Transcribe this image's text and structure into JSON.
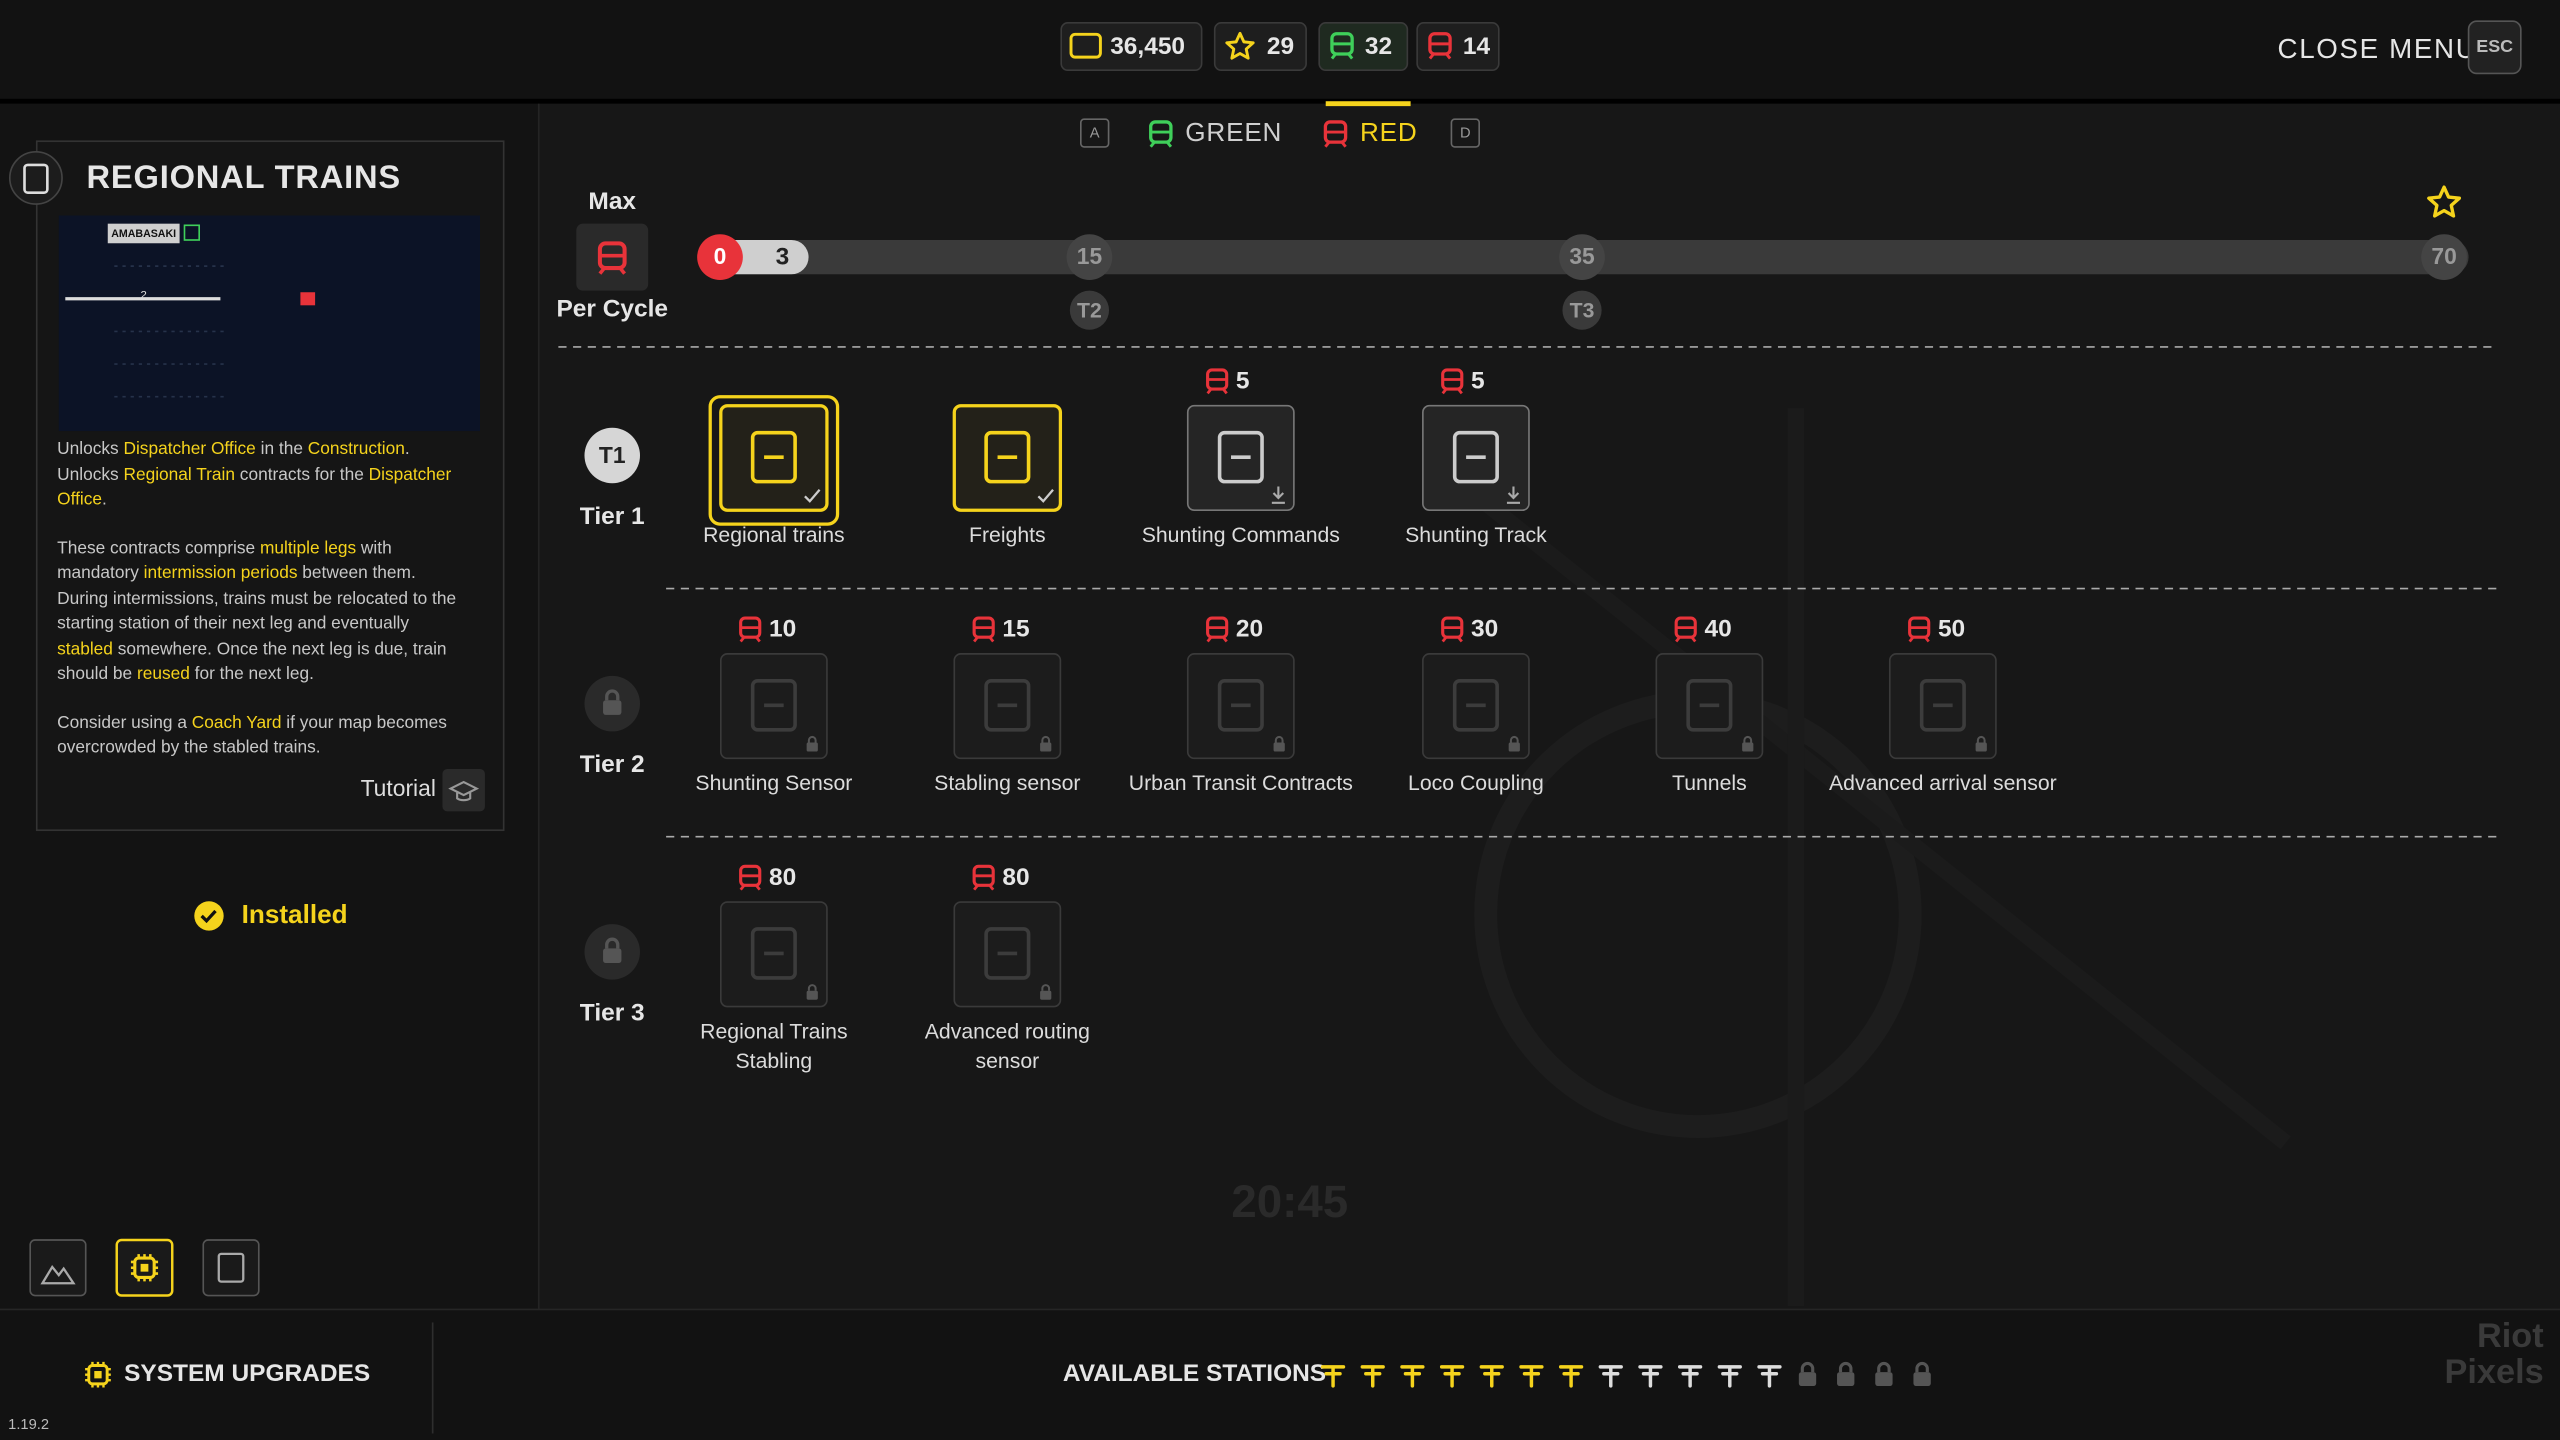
{
  "resources": [
    "36,450",
    "29",
    "32",
    "14"
  ],
  "close_menu": {
    "label": "CLOSE MENU",
    "key": "ESC"
  },
  "tabs": {
    "prev_key": "A",
    "items": [
      "GREEN",
      "RED"
    ],
    "next_key": "D"
  },
  "detail": {
    "title": "REGIONAL TRAINS",
    "preview": {
      "station": "AMABASAKI",
      "leg": "2"
    },
    "paragraphs": [
      [
        "Unlocks ",
        "Dispatcher Office",
        " in the ",
        "Construction",
        ". Unlocks ",
        "Regional Train",
        " contracts for the ",
        "Dispatcher Office",
        "."
      ],
      [
        "These contracts comprise ",
        "multiple legs",
        " with mandatory ",
        "intermission periods",
        " between them. During intermissions, trains must be relocated to the starting station of their next leg and eventually ",
        "stabled",
        " somewhere. Once the next leg is due, train should be ",
        "reused",
        " for the next leg."
      ],
      [
        "Consider using a ",
        "Coach Yard",
        " if your map becomes overcrowded by the stabled trains."
      ]
    ],
    "tutorial": "Tutorial",
    "status": "Installed"
  },
  "progress": {
    "top_label": "Max",
    "bottom_label": "Per Cycle",
    "current": 0,
    "cap": 3,
    "milestones": [
      {
        "value": 15,
        "tier": "T2"
      },
      {
        "value": 35,
        "tier": "T3"
      },
      {
        "value": 70
      }
    ]
  },
  "tiers": [
    {
      "badge": "T1",
      "label": "Tier 1",
      "nodes": [
        {
          "label": "Regional trains",
          "status": "selected"
        },
        {
          "label": "Freights",
          "status": "installed"
        },
        {
          "label": "Shunting Commands",
          "cost": 5,
          "status": "available"
        },
        {
          "label": "Shunting Track",
          "cost": 5,
          "status": "available"
        }
      ]
    },
    {
      "label": "Tier 2",
      "nodes": [
        {
          "label": "Shunting Sensor",
          "cost": 10,
          "status": "locked"
        },
        {
          "label": "Stabling sensor",
          "cost": 15,
          "status": "locked"
        },
        {
          "label": "Urban Transit Contracts",
          "cost": 20,
          "status": "locked"
        },
        {
          "label": "Loco Coupling",
          "cost": 30,
          "status": "locked"
        },
        {
          "label": "Tunnels",
          "cost": 40,
          "status": "locked"
        },
        {
          "label": "Advanced arrival sensor",
          "cost": 50,
          "status": "locked"
        }
      ]
    },
    {
      "label": "Tier 3",
      "nodes": [
        {
          "label": "Regional Trains Stabling",
          "cost": 80,
          "status": "locked"
        },
        {
          "label": "Advanced routing sensor",
          "cost": 80,
          "status": "locked"
        }
      ]
    }
  ],
  "background": {
    "clock": "20:45"
  },
  "footer": {
    "section": "SYSTEM UPGRADES",
    "stations_label": "AVAILABLE STATIONS",
    "version": "1.19.2",
    "watermark": "Riot Pixels"
  }
}
